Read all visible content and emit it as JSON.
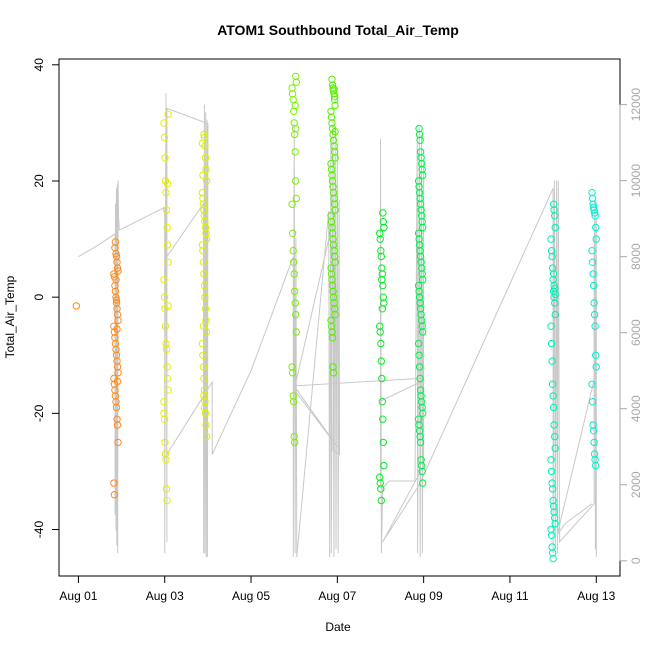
{
  "chart_data": {
    "type": "scatter",
    "title": "ATOM1 Southbound Total_Air_Temp",
    "xlabel": "Date",
    "ylabel": "Total_Air_Temp",
    "x_ticks": [
      "Aug 01",
      "Aug 03",
      "Aug 05",
      "Aug 07",
      "Aug 09",
      "Aug 11",
      "Aug 13"
    ],
    "x_tick_days": [
      1,
      3,
      5,
      7,
      9,
      11,
      13
    ],
    "xlim_days": [
      0.55,
      13.55
    ],
    "y_ticks": [
      -40,
      -20,
      0,
      20,
      40
    ],
    "ylim": [
      -48,
      41
    ],
    "y2_ticks": [
      0,
      2000,
      4000,
      6000,
      8000,
      10000,
      12000
    ],
    "y2lim": [
      -400,
      13200
    ],
    "grid": false,
    "legend": "none",
    "point_colors": {
      "Aug 01": "#ff8a00",
      "Aug 02": "#ff8c1a",
      "Aug 03": "#e6ee00",
      "Aug 04": "#dcf000",
      "Aug 06": "#7cf000",
      "Aug 07": "#55f000",
      "Aug 08": "#00f020",
      "Aug 09": "#00f04a",
      "Aug 12": "#00f0b8",
      "Aug 13": "#00f0d0"
    },
    "altitude_color": "#c8c8c8",
    "temperature_clusters": [
      {
        "day": 1.0,
        "color_key": "Aug 01",
        "values": [
          -1.5
        ]
      },
      {
        "day": 1.87,
        "color_key": "Aug 02",
        "values": [
          7.5,
          7,
          6,
          5,
          4.5,
          4,
          3.5,
          2,
          1,
          0,
          -1,
          -2,
          -3,
          -4,
          -5,
          -6,
          -7,
          -8,
          -9,
          -10,
          -11,
          -12,
          -13,
          -14,
          -15,
          -16,
          -17,
          -18,
          -19,
          -21,
          -22,
          -25,
          -32,
          -34,
          8.5,
          9.5,
          3,
          -0.5,
          -5.5,
          -14.5
        ]
      },
      {
        "day": 3.03,
        "color_key": "Aug 03",
        "values": [
          31.5,
          30,
          27.5,
          24,
          20,
          18,
          15,
          12,
          9,
          6,
          3,
          0,
          -2,
          -5,
          -8,
          -9,
          -12,
          -14,
          -16,
          -18,
          -21,
          -25,
          -27,
          -28,
          -33,
          -35,
          19.5,
          -1.5,
          -20
        ]
      },
      {
        "day": 3.92,
        "color_key": "Aug 04",
        "values": [
          28,
          27.5,
          26,
          24,
          22,
          20,
          18,
          17,
          16,
          15,
          14,
          13,
          12,
          11,
          10,
          9,
          8,
          6,
          4,
          2,
          0,
          -2,
          -4,
          -6,
          -8,
          -10,
          -12,
          -14,
          -16,
          -18,
          -20,
          -22,
          -24,
          26.5,
          21,
          -5,
          -17,
          -19
        ]
      },
      {
        "day": 6.0,
        "color_key": "Aug 06",
        "values": [
          38,
          37,
          36,
          35,
          34,
          32,
          30,
          28,
          25,
          20,
          17,
          16,
          11,
          8,
          6,
          4,
          1,
          -1,
          -3,
          -6,
          -12,
          -13,
          -17,
          -18,
          -24,
          -25,
          33,
          29
        ]
      },
      {
        "day": 6.9,
        "color_key": "Aug 07",
        "values": [
          37.5,
          36.5,
          36,
          35.5,
          35,
          34,
          33,
          32,
          31,
          30,
          29,
          28,
          27,
          26,
          25,
          24,
          23,
          22,
          21,
          20,
          19,
          18,
          17,
          16,
          15,
          14,
          13,
          12,
          11,
          10,
          9,
          8,
          7,
          6,
          5,
          4,
          3,
          2,
          1,
          0,
          -1,
          -2,
          -3,
          -4,
          -5,
          -6,
          -7,
          -12,
          -13,
          35.8,
          34.5,
          28.5
        ]
      },
      {
        "day": 8.03,
        "color_key": "Aug 08",
        "values": [
          14.5,
          13,
          12,
          11,
          10,
          8,
          7,
          5,
          4,
          2,
          0,
          -1,
          -5,
          -6,
          -8,
          -11,
          -14,
          -18,
          -21,
          -25,
          -29,
          -31,
          -32,
          -33,
          -35,
          3,
          -2
        ]
      },
      {
        "day": 8.93,
        "color_key": "Aug 09",
        "values": [
          29,
          28,
          27,
          25,
          24,
          23,
          22,
          21,
          20,
          19,
          18,
          17,
          16,
          15,
          14,
          13,
          12,
          11,
          10,
          9,
          8,
          7,
          6,
          5,
          4,
          3,
          2,
          1,
          0,
          -1,
          -2,
          -3,
          -4,
          -5,
          -6,
          -8,
          -10,
          -12,
          -14,
          -16,
          -17,
          -18,
          -19,
          -20,
          -21,
          -22,
          -23,
          -24,
          -25,
          -28,
          -29,
          -30,
          -32
        ]
      },
      {
        "day": 12.0,
        "color_key": "Aug 12",
        "values": [
          16,
          15,
          14,
          12,
          10,
          8,
          7,
          5,
          3,
          1,
          0,
          -1,
          -3,
          -5,
          -8,
          -11,
          -15,
          -17,
          -19,
          -22,
          -24,
          -26,
          -28,
          -30,
          -32,
          -33,
          -35,
          -36,
          -37,
          -38,
          -39,
          -40,
          -41,
          -43,
          -44,
          -45,
          4,
          2,
          1.5,
          0.5
        ]
      },
      {
        "day": 12.95,
        "color_key": "Aug 13",
        "values": [
          18,
          17,
          16,
          15.5,
          15,
          14.5,
          14,
          12,
          10,
          8,
          6,
          4,
          2,
          -1,
          -3,
          -5,
          -10,
          -12,
          -15,
          -18,
          -22,
          -23,
          -25,
          -27,
          -28,
          -29
        ]
      }
    ],
    "altitude_series": [
      [
        1.0,
        8000
      ],
      [
        1.45,
        8300
      ],
      [
        1.85,
        8600
      ],
      [
        1.85,
        1200
      ],
      [
        1.86,
        9400
      ],
      [
        1.87,
        800
      ],
      [
        1.88,
        9800
      ],
      [
        1.89,
        400
      ],
      [
        1.9,
        9900
      ],
      [
        1.91,
        200
      ],
      [
        1.92,
        10000
      ],
      [
        1.93,
        9000
      ],
      [
        1.95,
        8700
      ],
      [
        3.0,
        9300
      ],
      [
        3.0,
        200
      ],
      [
        3.02,
        10000
      ],
      [
        3.03,
        12300
      ],
      [
        3.05,
        500
      ],
      [
        3.05,
        8000
      ],
      [
        3.9,
        9400
      ],
      [
        3.9,
        200
      ],
      [
        3.92,
        12000
      ],
      [
        3.93,
        200
      ],
      [
        3.95,
        11800
      ],
      [
        3.96,
        100
      ],
      [
        3.98,
        11600
      ],
      [
        3.99,
        100
      ],
      [
        4.0,
        11500
      ],
      [
        3.05,
        11900
      ],
      [
        3.05,
        11800
      ],
      [
        3.05,
        2800
      ],
      [
        4.1,
        4700
      ],
      [
        4.1,
        2800
      ],
      [
        5.0,
        5000
      ],
      [
        5.98,
        8000
      ],
      [
        5.98,
        100
      ],
      [
        6.0,
        11500
      ],
      [
        6.02,
        200
      ],
      [
        6.04,
        8500
      ],
      [
        6.06,
        100
      ],
      [
        6.8,
        9200
      ],
      [
        6.82,
        100
      ],
      [
        6.85,
        11000
      ],
      [
        6.86,
        200
      ],
      [
        6.9,
        11600
      ],
      [
        6.92,
        100
      ],
      [
        6.95,
        11400
      ],
      [
        6.97,
        300
      ],
      [
        7.0,
        11000
      ],
      [
        7.02,
        200
      ],
      [
        7.04,
        9500
      ],
      [
        7.05,
        2800
      ],
      [
        6.9,
        2900
      ],
      [
        6.95,
        9200
      ],
      [
        6.0,
        4500
      ],
      [
        7.0,
        3000
      ],
      [
        6.0,
        4600
      ],
      [
        8.95,
        4800
      ],
      [
        8.92,
        4700
      ],
      [
        8.0,
        4200
      ],
      [
        8.0,
        2000
      ],
      [
        8.0,
        11100
      ],
      [
        8.02,
        200
      ],
      [
        8.05,
        1900
      ],
      [
        8.2,
        2100
      ],
      [
        8.8,
        2100
      ],
      [
        8.85,
        11000
      ],
      [
        8.86,
        200
      ],
      [
        8.9,
        11400
      ],
      [
        8.92,
        100
      ],
      [
        8.95,
        11200
      ],
      [
        8.97,
        200
      ],
      [
        9.0,
        10500
      ],
      [
        9.0,
        2500
      ],
      [
        8.05,
        500
      ],
      [
        8.9,
        2000
      ],
      [
        12.0,
        9800
      ],
      [
        12.0,
        200
      ],
      [
        12.03,
        10000
      ],
      [
        12.05,
        300
      ],
      [
        12.08,
        10000
      ],
      [
        12.1,
        200
      ],
      [
        12.12,
        10000
      ],
      [
        12.15,
        500
      ],
      [
        12.95,
        1500
      ],
      [
        12.95,
        8000
      ],
      [
        12.97,
        9500
      ],
      [
        12.98,
        300
      ],
      [
        13.0,
        9000
      ],
      [
        13.0,
        100
      ],
      [
        13.0,
        5000
      ],
      [
        12.1,
        700
      ],
      [
        12.3,
        1000
      ],
      [
        12.9,
        1500
      ]
    ]
  }
}
